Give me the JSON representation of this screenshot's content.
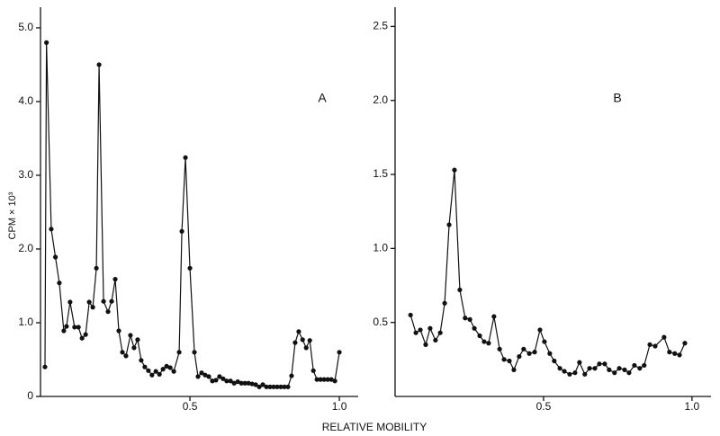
{
  "chart_data": [
    {
      "type": "line",
      "panel_label": "A",
      "ylabel": "CPM × 10³",
      "xlabel": "RELATIVE MOBILITY",
      "color": "#111111",
      "xlim": [
        0,
        1.063
      ],
      "xticks": [
        0.5,
        {
          "value": 1,
          "label": "1.0"
        }
      ],
      "ylim": [
        0,
        5.28
      ],
      "yticks": [
        0,
        {
          "value": 1,
          "label": "1.0"
        },
        {
          "value": 2,
          "label": "2.0"
        },
        {
          "value": 3,
          "label": "3.0"
        },
        {
          "value": 4,
          "label": "4.0"
        },
        {
          "value": 5,
          "label": "5.0"
        }
      ],
      "x": [
        0.015,
        0.02,
        0.036,
        0.05,
        0.063,
        0.078,
        0.087,
        0.099,
        0.114,
        0.127,
        0.139,
        0.151,
        0.163,
        0.175,
        0.187,
        0.196,
        0.211,
        0.226,
        0.238,
        0.25,
        0.262,
        0.274,
        0.286,
        0.301,
        0.313,
        0.325,
        0.337,
        0.349,
        0.361,
        0.373,
        0.386,
        0.398,
        0.41,
        0.422,
        0.434,
        0.446,
        0.464,
        0.473,
        0.485,
        0.5,
        0.515,
        0.527,
        0.539,
        0.551,
        0.563,
        0.575,
        0.587,
        0.599,
        0.611,
        0.623,
        0.636,
        0.648,
        0.66,
        0.672,
        0.684,
        0.696,
        0.708,
        0.72,
        0.732,
        0.744,
        0.756,
        0.768,
        0.78,
        0.792,
        0.804,
        0.816,
        0.828,
        0.84,
        0.852,
        0.864,
        0.877,
        0.889,
        0.901,
        0.913,
        0.925,
        0.937,
        0.949,
        0.961,
        0.973,
        0.985,
        1.0
      ],
      "values": [
        0.4,
        4.8,
        2.27,
        1.89,
        1.54,
        0.89,
        0.95,
        1.28,
        0.94,
        0.94,
        0.79,
        0.84,
        1.28,
        1.21,
        1.74,
        4.5,
        1.29,
        1.15,
        1.29,
        1.59,
        0.89,
        0.6,
        0.55,
        0.83,
        0.66,
        0.77,
        0.49,
        0.4,
        0.35,
        0.29,
        0.34,
        0.3,
        0.37,
        0.41,
        0.39,
        0.34,
        0.6,
        2.24,
        3.24,
        1.74,
        0.6,
        0.27,
        0.32,
        0.29,
        0.27,
        0.21,
        0.22,
        0.27,
        0.24,
        0.21,
        0.21,
        0.18,
        0.2,
        0.18,
        0.18,
        0.18,
        0.17,
        0.16,
        0.13,
        0.16,
        0.13,
        0.13,
        0.13,
        0.13,
        0.13,
        0.13,
        0.13,
        0.28,
        0.73,
        0.88,
        0.77,
        0.66,
        0.76,
        0.35,
        0.23,
        0.23,
        0.23,
        0.23,
        0.23,
        0.21,
        0.6
      ]
    },
    {
      "type": "line",
      "panel_label": "B",
      "color": "#111111",
      "xlim": [
        0,
        1.064
      ],
      "xticks": [
        0.5,
        {
          "value": 1,
          "label": "1.0"
        }
      ],
      "ylim": [
        0,
        2.63
      ],
      "yticks": [
        0.5,
        {
          "value": 1,
          "label": "1.0"
        },
        1.5,
        {
          "value": 2,
          "label": "2.0"
        },
        2.5
      ],
      "x": [
        0.052,
        0.07,
        0.085,
        0.103,
        0.118,
        0.136,
        0.152,
        0.167,
        0.182,
        0.2,
        0.218,
        0.236,
        0.252,
        0.267,
        0.285,
        0.3,
        0.315,
        0.333,
        0.352,
        0.367,
        0.385,
        0.4,
        0.418,
        0.433,
        0.452,
        0.47,
        0.488,
        0.503,
        0.521,
        0.536,
        0.555,
        0.57,
        0.588,
        0.606,
        0.621,
        0.639,
        0.655,
        0.673,
        0.688,
        0.706,
        0.721,
        0.739,
        0.755,
        0.773,
        0.788,
        0.806,
        0.824,
        0.839,
        0.858,
        0.876,
        0.906,
        0.924,
        0.942,
        0.958,
        0.976
      ],
      "values": [
        0.55,
        0.43,
        0.45,
        0.35,
        0.46,
        0.38,
        0.43,
        0.63,
        1.16,
        1.53,
        0.72,
        0.53,
        0.52,
        0.46,
        0.41,
        0.37,
        0.36,
        0.54,
        0.32,
        0.25,
        0.24,
        0.18,
        0.27,
        0.32,
        0.29,
        0.3,
        0.45,
        0.37,
        0.29,
        0.24,
        0.19,
        0.17,
        0.15,
        0.16,
        0.23,
        0.15,
        0.19,
        0.19,
        0.22,
        0.22,
        0.18,
        0.16,
        0.19,
        0.18,
        0.16,
        0.21,
        0.19,
        0.21,
        0.35,
        0.34,
        0.4,
        0.3,
        0.29,
        0.28,
        0.36
      ]
    }
  ]
}
